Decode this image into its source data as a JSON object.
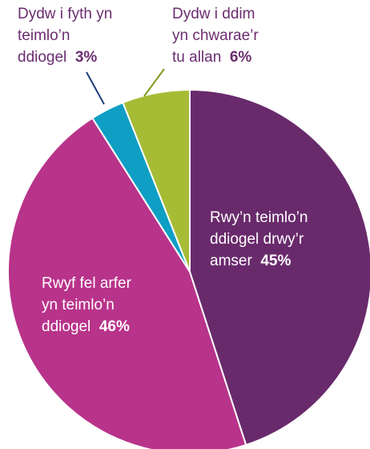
{
  "chart_data": {
    "type": "pie",
    "categories": [
      "Rwy’n teimlo’n\nddiogel drwy’r\namser",
      "Rwyf fel arfer\nyn teimlo’n\nddiogel",
      "Dydw i fyth yn\nteimlo’n\nddiogel",
      "Dydw i ddim\nyn chwarae’r\ntu allan"
    ],
    "values": [
      45,
      46,
      3,
      6
    ],
    "value_labels": [
      "45%",
      "46%",
      "3%",
      "6%"
    ],
    "colors": [
      "#692a6c",
      "#b8338a",
      "#0f9ec4",
      "#a6bc35"
    ]
  }
}
